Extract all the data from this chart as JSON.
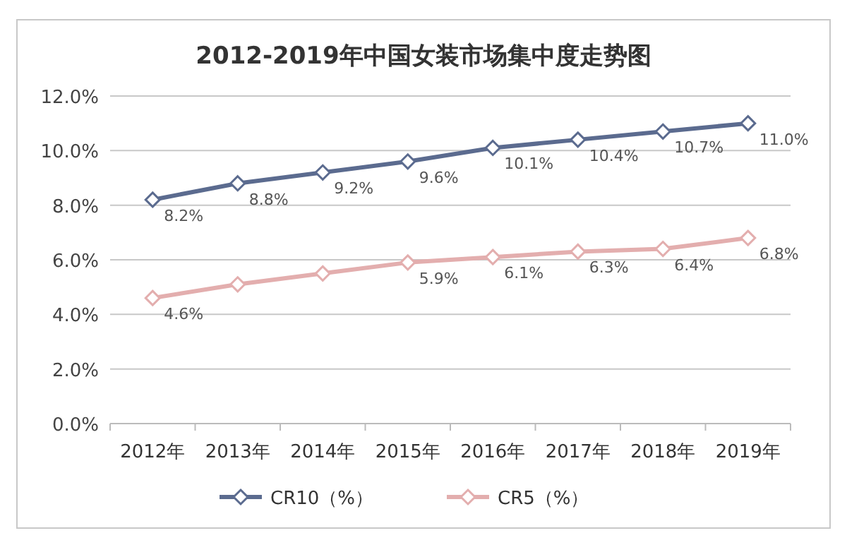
{
  "chart_data": {
    "type": "line",
    "title": "2012-2019年中国女装市场集中度走势图",
    "categories": [
      "2012年",
      "2013年",
      "2014年",
      "2015年",
      "2016年",
      "2017年",
      "2018年",
      "2019年"
    ],
    "series": [
      {
        "name": "CR10（%）",
        "color": "#5b6b8f",
        "values": [
          8.2,
          8.8,
          9.2,
          9.6,
          10.1,
          10.4,
          10.7,
          11.0
        ],
        "value_labels": [
          "8.2%",
          "8.8%",
          "9.2%",
          "9.6%",
          "10.1%",
          "10.4%",
          "10.7%",
          "11.0%"
        ]
      },
      {
        "name": "CR5（%）",
        "color": "#e3aeae",
        "values": [
          4.6,
          5.1,
          5.5,
          5.9,
          6.1,
          6.3,
          6.4,
          6.8
        ],
        "value_labels": [
          "4.6%",
          null,
          null,
          "5.9%",
          "6.1%",
          "6.3%",
          "6.4%",
          "6.8%"
        ]
      }
    ],
    "ylim": [
      0,
      12
    ],
    "yticks": [
      {
        "value": 0,
        "label": "0.0%"
      },
      {
        "value": 2,
        "label": "2.0%"
      },
      {
        "value": 4,
        "label": "4.0%"
      },
      {
        "value": 6,
        "label": "6.0%"
      },
      {
        "value": 8,
        "label": "8.0%"
      },
      {
        "value": 10,
        "label": "10.0%"
      },
      {
        "value": 12,
        "label": "12.0%"
      }
    ],
    "grid": "y",
    "legend": "bottom",
    "marker": "diamond"
  }
}
